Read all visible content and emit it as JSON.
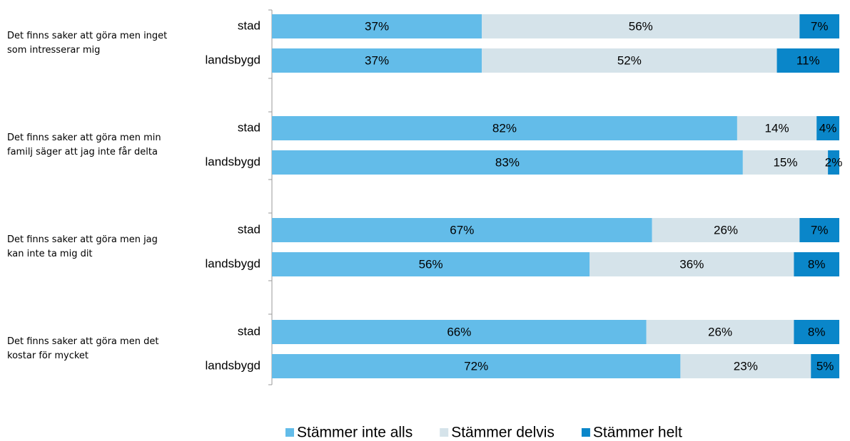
{
  "chart_data": {
    "type": "stacked-bar-horizontal",
    "groups": [
      "Det finns saker att göra men inget som intresserar mig",
      "Det finns saker att göra men min familj säger att jag inte får delta",
      "Det finns saker att göra men jag kan inte ta mig dit",
      "Det finns saker att göra men det kostar för mycket"
    ],
    "categories": [
      "stad",
      "landsbygd",
      "stad",
      "landsbygd",
      "stad",
      "landsbygd",
      "stad",
      "landsbygd"
    ],
    "xlim": [
      0,
      100
    ],
    "series": [
      {
        "name": "Stämmer inte alls",
        "color": "#63bce9",
        "values": [
          37,
          37,
          82,
          83,
          67,
          56,
          66,
          72
        ],
        "value_labels": [
          "37%",
          "37%",
          "82%",
          "83%",
          "67%",
          "56%",
          "66%",
          "72%"
        ]
      },
      {
        "name": "Stämmer delvis",
        "color": "#d5e3ea",
        "values": [
          56,
          52,
          14,
          15,
          26,
          36,
          26,
          23
        ],
        "value_labels": [
          "56%",
          "52%",
          "14%",
          "15%",
          "26%",
          "36%",
          "26%",
          "23%"
        ]
      },
      {
        "name": "Stämmer helt",
        "color": "#0a86c9",
        "values": [
          7,
          11,
          4,
          2,
          7,
          8,
          8,
          5
        ],
        "value_labels": [
          "7%",
          "11%",
          "4%",
          "2%",
          "7%",
          "8%",
          "8%",
          "5%"
        ]
      }
    ],
    "legend": "bottom"
  }
}
